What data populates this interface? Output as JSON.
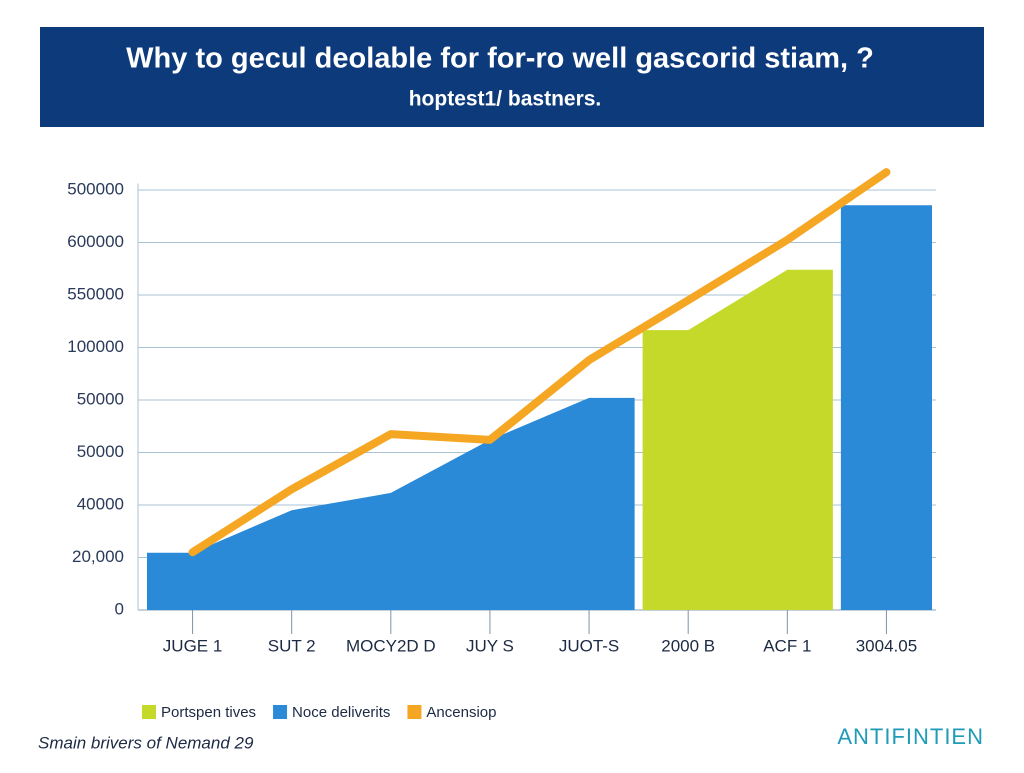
{
  "chart_data": {
    "type": "area",
    "title": "Why to gecul deolable for for-ro well gascorid stiam, ?",
    "subtitle": "hoptest1/ bastners.",
    "categories": [
      "JUGE 1",
      "SUT 2",
      "MOCY2D D",
      "JUY S",
      "JUOT-S",
      "2000 B",
      "ACF 1",
      "3004.05"
    ],
    "series": [
      {
        "name": "Portspen tives",
        "color": "#c5d92a",
        "kind": "area",
        "values": [
          null,
          null,
          null,
          null,
          null,
          5.33,
          6.48,
          null
        ]
      },
      {
        "name": "Noce deliverits",
        "color": "#2a8ad8",
        "kind": "area",
        "values": [
          1.09,
          1.9,
          2.23,
          3.24,
          4.04,
          null,
          null,
          7.71
        ]
      },
      {
        "name": "Ancensiop",
        "color": "#f5a623",
        "kind": "line",
        "values": [
          1.1,
          2.3,
          3.35,
          3.24,
          4.76,
          5.9,
          7.05,
          8.34
        ]
      }
    ],
    "ylim": [
      0,
      8.6
    ],
    "yticks": [
      {
        "value": 0,
        "label": "0"
      },
      {
        "value": 1,
        "label": "20,000"
      },
      {
        "value": 2,
        "label": "40000"
      },
      {
        "value": 3,
        "label": "50000"
      },
      {
        "value": 4,
        "label": "50000"
      },
      {
        "value": 5,
        "label": "100000"
      },
      {
        "value": 6,
        "label": "550000"
      },
      {
        "value": 7,
        "label": "600000"
      },
      {
        "value": 8,
        "label": "500000"
      }
    ],
    "grid": true,
    "footer": "Smain brivers of Nemand 29",
    "brand": "ANTIFINTIEN"
  }
}
